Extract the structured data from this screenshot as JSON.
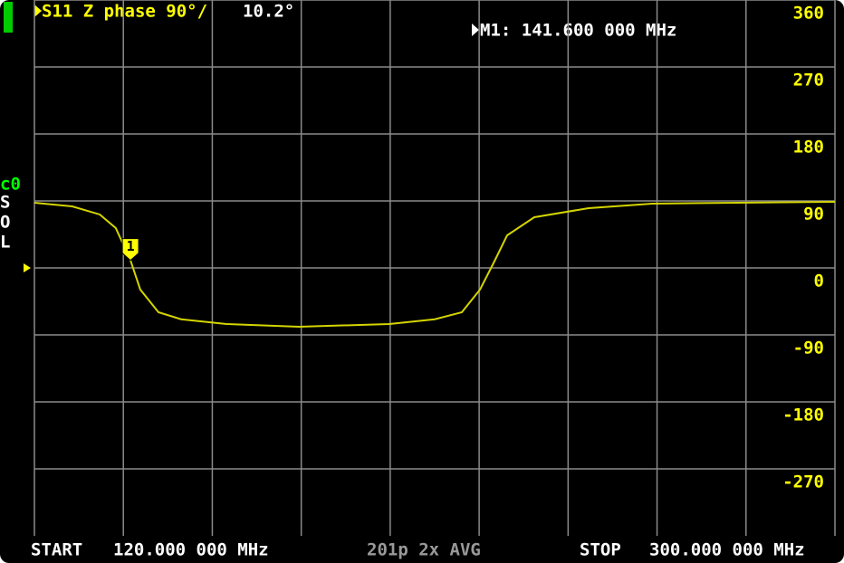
{
  "chart_data": {
    "type": "line",
    "x": [
      120,
      128.5,
      134.7,
      138.3,
      141.6,
      143.8,
      147.9,
      153,
      163.2,
      179.5,
      199.8,
      210,
      216.1,
      220.2,
      223.3,
      226.3,
      232.4,
      244.6,
      258.9,
      300
    ],
    "series": [
      {
        "name": "S11 Z phase 90°/",
        "color": "#d4d400",
        "values": [
          87.6,
          82.7,
          71.8,
          53.5,
          10.2,
          -29,
          -59.6,
          -69,
          -75.4,
          -79,
          -75.4,
          -69,
          -59.6,
          -29,
          7.3,
          43.8,
          68.1,
          80.3,
          86.4,
          88.8
        ]
      }
    ],
    "xlim": [
      120,
      300
    ],
    "xticks": [
      120,
      140,
      160,
      180,
      200,
      220,
      240,
      260,
      280,
      300
    ],
    "ylim": [
      -360,
      360
    ],
    "yticks": [
      360,
      270,
      180,
      90,
      0,
      -90,
      -180,
      -270
    ],
    "grid": true,
    "reference": 0,
    "marker": {
      "name": "1",
      "x": 141.6,
      "y": 10.2,
      "y_label": "10.2°",
      "readout": "M1: 141.600 000 MHz"
    },
    "status": {
      "start_label": "START",
      "start": "120.000 000 MHz",
      "info": "201p 2x AVG",
      "stop_label": "STOP",
      "stop": "300.000 000 MHz"
    },
    "side": {
      "channel": "c0",
      "cal": [
        "S",
        "O",
        "L"
      ]
    }
  }
}
